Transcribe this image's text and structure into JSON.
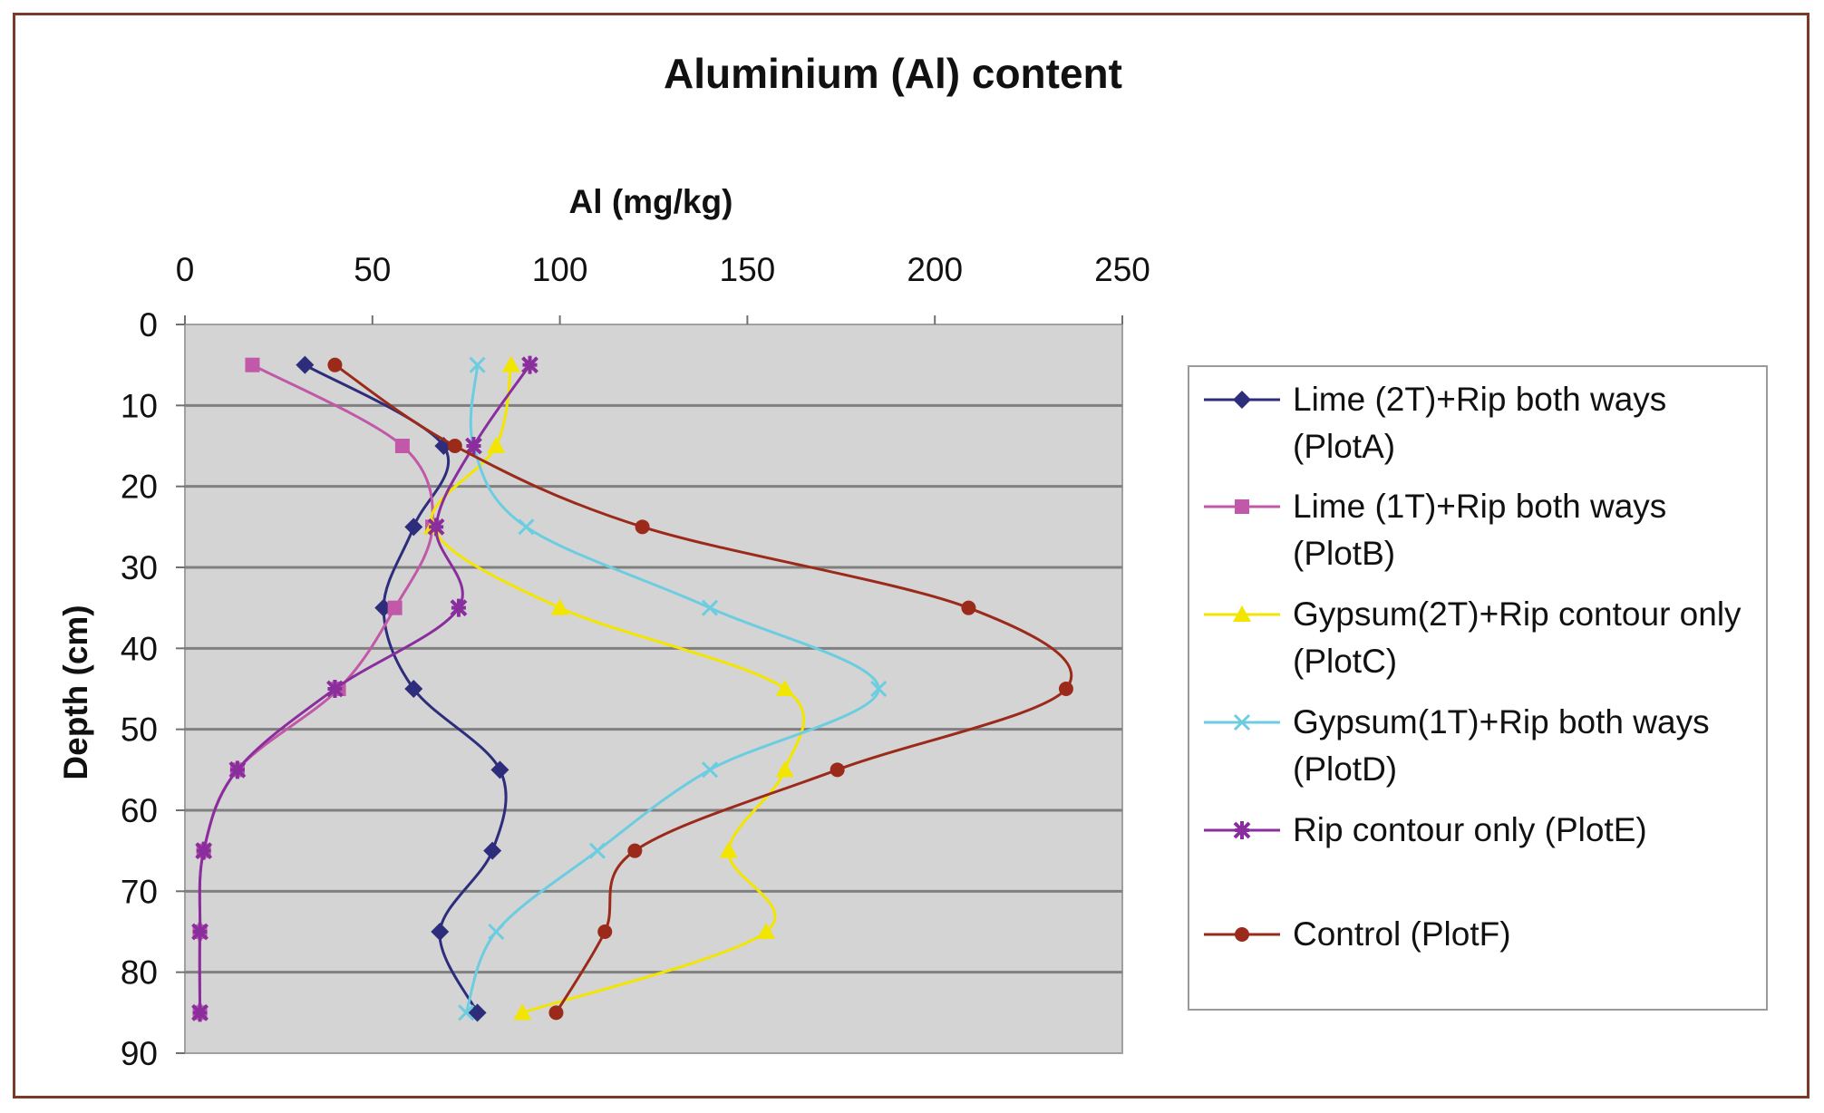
{
  "chart_data": {
    "type": "line",
    "title": "Aluminium (Al) content",
    "xlabel": "Al (mg/kg)",
    "ylabel": "Depth (cm)",
    "xlim": [
      0,
      250
    ],
    "ylim": [
      0,
      90
    ],
    "x_axis_position": "top",
    "y_axis_inverted": true,
    "xticks": [
      "0",
      "50",
      "100",
      "150",
      "200",
      "250"
    ],
    "yticks": [
      "0",
      "10",
      "20",
      "30",
      "40",
      "50",
      "60",
      "70",
      "80",
      "90"
    ],
    "grid": "horizontal",
    "plot_background": "#d4d4d4",
    "legend_position": "right",
    "series": [
      {
        "name": "Lime (2T)+Rip both ways (PlotA)",
        "color": "#2e2d7c",
        "marker": "diamond",
        "points": [
          [
            32,
            5
          ],
          [
            69,
            15
          ],
          [
            61,
            25
          ],
          [
            53,
            35
          ],
          [
            61,
            45
          ],
          [
            84,
            55
          ],
          [
            82,
            65
          ],
          [
            68,
            75
          ],
          [
            78,
            85
          ]
        ]
      },
      {
        "name": "Lime (1T)+Rip both ways (PlotB)",
        "color": "#c158a8",
        "marker": "square",
        "points": [
          [
            18,
            5
          ],
          [
            58,
            15
          ],
          [
            66,
            25
          ],
          [
            56,
            35
          ],
          [
            41,
            45
          ],
          [
            14,
            55
          ],
          [
            5,
            65
          ],
          [
            4,
            75
          ],
          [
            4,
            85
          ]
        ]
      },
      {
        "name": "Gypsum(2T)+Rip contour only (PlotC)",
        "color": "#f2e600",
        "marker": "triangle",
        "points": [
          [
            87,
            5
          ],
          [
            83,
            15
          ],
          [
            66,
            25
          ],
          [
            100,
            35
          ],
          [
            160,
            45
          ],
          [
            160,
            55
          ],
          [
            145,
            65
          ],
          [
            155,
            75
          ],
          [
            90,
            85
          ]
        ]
      },
      {
        "name": "Gypsum(1T)+Rip both ways (PlotD)",
        "color": "#6ccde0",
        "marker": "x",
        "points": [
          [
            78,
            5
          ],
          [
            77,
            15
          ],
          [
            91,
            25
          ],
          [
            140,
            35
          ],
          [
            185,
            45
          ],
          [
            140,
            55
          ],
          [
            110,
            65
          ],
          [
            83,
            75
          ],
          [
            75,
            85
          ]
        ]
      },
      {
        "name": "Rip contour only (PlotE)",
        "color": "#8a2e9e",
        "marker": "star",
        "points": [
          [
            92,
            5
          ],
          [
            77,
            15
          ],
          [
            67,
            25
          ],
          [
            73,
            35
          ],
          [
            40,
            45
          ],
          [
            14,
            55
          ],
          [
            5,
            65
          ],
          [
            4,
            75
          ],
          [
            4,
            85
          ]
        ]
      },
      {
        "name": "Control (PlotF)",
        "color": "#9b2a1a",
        "marker": "circle",
        "points": [
          [
            40,
            5
          ],
          [
            72,
            15
          ],
          [
            122,
            25
          ],
          [
            209,
            35
          ],
          [
            235,
            45
          ],
          [
            174,
            55
          ],
          [
            120,
            65
          ],
          [
            112,
            75
          ],
          [
            99,
            85
          ]
        ]
      }
    ]
  }
}
